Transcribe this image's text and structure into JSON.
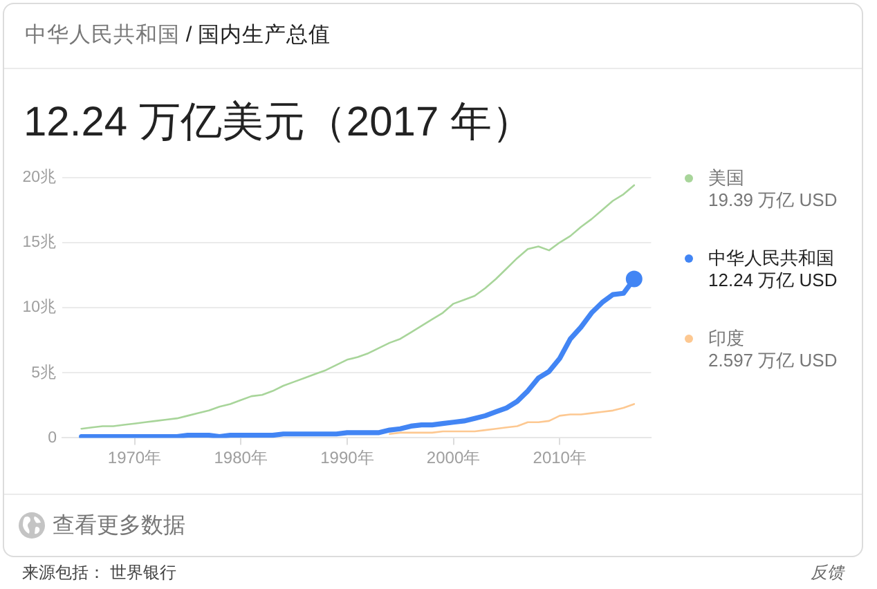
{
  "chart_data": {
    "type": "line",
    "subtitle": "中华人民共和国 / 国内生产总值",
    "title": "12.24 万亿美元（2017 年）",
    "x": [
      1965,
      1966,
      1967,
      1968,
      1969,
      1970,
      1971,
      1972,
      1973,
      1974,
      1975,
      1976,
      1977,
      1978,
      1979,
      1980,
      1981,
      1982,
      1983,
      1984,
      1985,
      1986,
      1987,
      1988,
      1989,
      1990,
      1991,
      1992,
      1993,
      1994,
      1995,
      1996,
      1997,
      1998,
      1999,
      2000,
      2001,
      2002,
      2003,
      2004,
      2005,
      2006,
      2007,
      2008,
      2009,
      2010,
      2011,
      2012,
      2013,
      2014,
      2015,
      2016,
      2017
    ],
    "xlim": [
      1963.2,
      2018.6
    ],
    "xticks": [
      {
        "value": 1970,
        "label": "1970年"
      },
      {
        "value": 1980,
        "label": "1980年"
      },
      {
        "value": 1990,
        "label": "1990年"
      },
      {
        "value": 2000,
        "label": "2000年"
      },
      {
        "value": 2010,
        "label": "2010年"
      }
    ],
    "ylim": [
      0,
      20
    ],
    "yticks": [
      0,
      {
        "value": 5,
        "label": "5兆"
      },
      {
        "value": 10,
        "label": "10兆"
      },
      {
        "value": 15,
        "label": "15兆"
      },
      {
        "value": 20,
        "label": "20兆"
      }
    ],
    "grid": "y",
    "legend": "right",
    "marker": "none",
    "series": [
      {
        "name": "美国",
        "color": "#a8d59a",
        "values": [
          0.7,
          0.8,
          0.9,
          0.9,
          1.0,
          1.1,
          1.2,
          1.3,
          1.4,
          1.5,
          1.7,
          1.9,
          2.1,
          2.4,
          2.6,
          2.9,
          3.2,
          3.3,
          3.6,
          4.0,
          4.3,
          4.6,
          4.9,
          5.2,
          5.6,
          6.0,
          6.2,
          6.5,
          6.9,
          7.3,
          7.6,
          8.1,
          8.6,
          9.1,
          9.6,
          10.3,
          10.6,
          10.9,
          11.5,
          12.2,
          13.0,
          13.8,
          14.5,
          14.7,
          14.4,
          15.0,
          15.5,
          16.2,
          16.8,
          17.5,
          18.2,
          18.7,
          19.4
        ]
      },
      {
        "name": "中华人民共和国",
        "color": "#4285f4",
        "values": [
          0.1,
          0.1,
          0.1,
          0.1,
          0.1,
          0.1,
          0.1,
          0.1,
          0.1,
          0.1,
          0.2,
          0.2,
          0.2,
          0.1,
          0.2,
          0.2,
          0.2,
          0.2,
          0.2,
          0.3,
          0.3,
          0.3,
          0.3,
          0.3,
          0.3,
          0.4,
          0.4,
          0.4,
          0.4,
          0.6,
          0.7,
          0.9,
          1.0,
          1.0,
          1.1,
          1.2,
          1.3,
          1.5,
          1.7,
          2.0,
          2.3,
          2.8,
          3.6,
          4.6,
          5.1,
          6.1,
          7.6,
          8.5,
          9.6,
          10.4,
          11.0,
          11.1,
          12.2
        ]
      },
      {
        "name": "印度",
        "color": "#fdc891",
        "values": [
          null,
          null,
          null,
          null,
          null,
          null,
          null,
          null,
          null,
          null,
          null,
          null,
          null,
          null,
          null,
          null,
          null,
          null,
          null,
          null,
          null,
          null,
          null,
          null,
          null,
          null,
          null,
          null,
          null,
          0.3,
          0.4,
          0.4,
          0.4,
          0.4,
          0.5,
          0.5,
          0.5,
          0.5,
          0.6,
          0.7,
          0.8,
          0.9,
          1.2,
          1.2,
          1.3,
          1.7,
          1.8,
          1.8,
          1.9,
          2.0,
          2.1,
          2.3,
          2.6
        ]
      },
      {
        "type": "scatter",
        "color": "#4285f4",
        "marker": "circle",
        "x": [
          2017
        ],
        "values": [
          12.2
        ]
      }
    ],
    "annotations": [
      "19.39 万亿 USD",
      "12.24 万亿 USD",
      "2.597 万亿 USD",
      "查看更多数据",
      "来源包括： 世界银行",
      "反馈"
    ]
  }
}
